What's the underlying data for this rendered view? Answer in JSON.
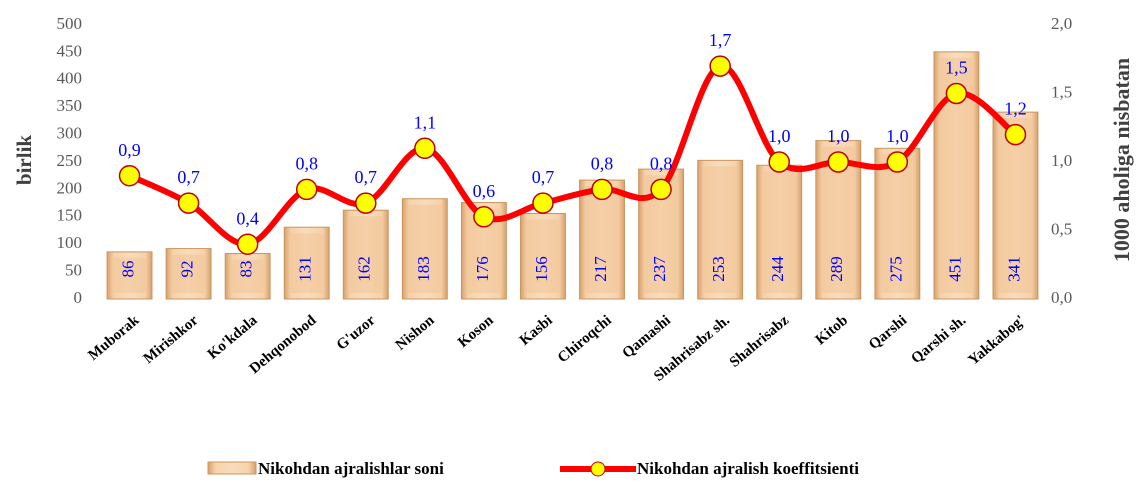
{
  "chart_data": {
    "type": "bar_line",
    "categories": [
      "Muborak",
      "Mirishkor",
      "Ko'kdala",
      "Dehqonobod",
      "G'uzor",
      "Nishon",
      "Koson",
      "Kasbi",
      "Chiroqchi",
      "Qamashi",
      "Shahrisabz sh.",
      "Shahrisabz",
      "Kitob",
      "Qarshi",
      "Qarshi sh.",
      "Yakkabog'"
    ],
    "series": [
      {
        "name": "Nikohdan ajralishlar soni",
        "type": "bar",
        "color": "#f2c598",
        "values": [
          86,
          92,
          83,
          131,
          162,
          183,
          176,
          156,
          217,
          237,
          253,
          244,
          289,
          275,
          451,
          341
        ]
      },
      {
        "name": "Nikohdan ajralish koeffitsienti",
        "type": "line",
        "axis": "y2",
        "color": "#ff0000",
        "values": [
          0.9,
          0.7,
          0.4,
          0.8,
          0.7,
          1.1,
          0.6,
          0.7,
          0.8,
          0.8,
          1.7,
          1.0,
          1.0,
          1.0,
          1.5,
          1.2
        ],
        "value_labels": [
          "0,9",
          "0,7",
          "0,4",
          "0,8",
          "0,7",
          "1,1",
          "0,6",
          "0,7",
          "0,8",
          "0,8",
          "1,7",
          "1,0",
          "1,0",
          "1,0",
          "1,5",
          "1,2"
        ]
      }
    ],
    "ylabel": "birlik",
    "y2label": "1000 aholiga nisbatan",
    "ylim": [
      0,
      500
    ],
    "yticks": [
      0,
      50,
      100,
      150,
      200,
      250,
      300,
      350,
      400,
      450,
      500
    ],
    "y2lim": [
      0,
      2
    ],
    "y2ticks": [
      {
        "value": 0,
        "label": "0,0"
      },
      {
        "value": 0.5,
        "label": "0,5"
      },
      {
        "value": 1,
        "label": "1,0"
      },
      {
        "value": 1.5,
        "label": "1,5"
      },
      {
        "value": 2,
        "label": "2,0"
      }
    ],
    "grid": false,
    "legend": "bottom"
  }
}
